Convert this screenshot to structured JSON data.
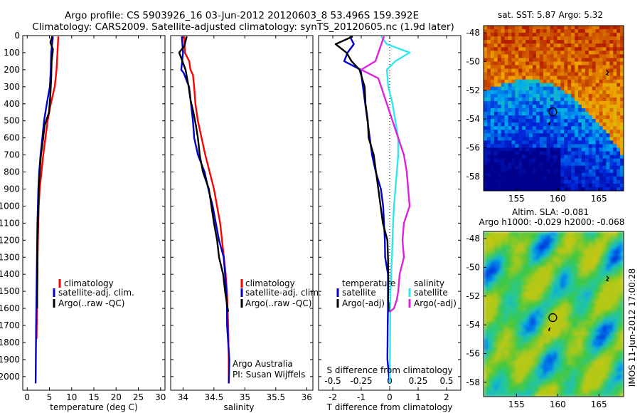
{
  "header": {
    "line1": "Argo profile: CS 5903926_16 03-Jun-2012 20120603_8 53.496S 159.392E",
    "line2": "Climatology: CARS2009. Satellite-adjusted climatology: synTS_20120605.nc (1.9d later)"
  },
  "colors": {
    "climatology": "#ff0000",
    "satellite": "#0000cc",
    "argo": "#000000",
    "sat_salinity": "#33e6ee",
    "argo_salinity_diff": "#dd22dd"
  },
  "chart_data": [
    {
      "type": "line",
      "id": "temperature",
      "xlabel": "temperature (deg C)",
      "xlim": [
        -1,
        31
      ],
      "ylim": [
        2080,
        0
      ],
      "xticks": [
        "0",
        "5",
        "10",
        "15",
        "20",
        "25",
        "30"
      ],
      "yticks": [
        "0",
        "100",
        "200",
        "300",
        "400",
        "500",
        "600",
        "700",
        "800",
        "900",
        "1000",
        "1100",
        "1200",
        "1300",
        "1400",
        "1500",
        "1600",
        "1700",
        "1800",
        "1900",
        "2000"
      ],
      "legend": [
        "climatology",
        "satellite-adj. clim.",
        "Argo(..raw -QC)"
      ],
      "series": [
        {
          "name": "climatology",
          "color": "#ff0000",
          "x": [
            7.0,
            6.9,
            6.8,
            6.6,
            6.2,
            5.3,
            4.6,
            4.1,
            3.6,
            3.2,
            2.8,
            2.6,
            2.5,
            2.4,
            2.35,
            2.3,
            2.25,
            2.2,
            2.15,
            2.1
          ],
          "y": [
            5,
            50,
            100,
            200,
            300,
            400,
            500,
            600,
            700,
            800,
            900,
            1000,
            1100,
            1200,
            1300,
            1400,
            1500,
            1600,
            1700,
            1780
          ]
        },
        {
          "name": "satellite-adj. clim.",
          "color": "#0000cc",
          "x": [
            5.8,
            5.6,
            5.4,
            5.3,
            5.1,
            4.4,
            3.8,
            3.4,
            3.0,
            2.7,
            2.5,
            2.4,
            2.3,
            2.25,
            2.2,
            2.15,
            2.1,
            2.05,
            2.0,
            1.95,
            1.9
          ],
          "y": [
            5,
            50,
            100,
            200,
            300,
            400,
            500,
            600,
            700,
            800,
            900,
            1000,
            1100,
            1200,
            1300,
            1400,
            1500,
            1600,
            1700,
            1900,
            2040
          ]
        },
        {
          "name": "Argo(..raw -QC)",
          "color": "#000000",
          "x": [
            5.6,
            5.2,
            5.8,
            5.5,
            5.4,
            5.2,
            4.9,
            3.9,
            3.6,
            3.1,
            2.8,
            2.6,
            2.5,
            2.4,
            2.35,
            2.3,
            2.3,
            2.25,
            2.25
          ],
          "y": [
            5,
            40,
            80,
            150,
            250,
            350,
            450,
            530,
            600,
            700,
            800,
            900,
            1000,
            1100,
            1200,
            1300,
            1400,
            1500,
            1600
          ]
        }
      ]
    },
    {
      "type": "line",
      "id": "salinity",
      "xlabel": "salinity",
      "xlim": [
        33.8,
        36.1
      ],
      "ylim": [
        2080,
        0
      ],
      "xticks": [
        "34",
        "34.5",
        "35",
        "35.5",
        "36"
      ],
      "legend": [
        "climatology",
        "satellite-adj. clim.",
        "Argo(..raw -QC)"
      ],
      "annotation": [
        "Argo Australia",
        "PI: Susan Wijffels"
      ],
      "series": [
        {
          "name": "climatology",
          "color": "#ff0000",
          "x": [
            34.02,
            34.03,
            34.1,
            34.12,
            34.16,
            34.18,
            34.2,
            34.24,
            34.3,
            34.36,
            34.43,
            34.5,
            34.55,
            34.6,
            34.63,
            34.66,
            34.69,
            34.71,
            34.72,
            34.73,
            34.74,
            34.74
          ],
          "y": [
            5,
            100,
            150,
            200,
            230,
            300,
            400,
            500,
            600,
            700,
            800,
            900,
            1000,
            1100,
            1200,
            1300,
            1400,
            1500,
            1600,
            1700,
            1900,
            2040
          ]
        },
        {
          "name": "satellite-adj. clim.",
          "color": "#0000cc",
          "x": [
            33.98,
            34.0,
            33.98,
            34.03,
            34.08,
            34.12,
            34.16,
            34.19,
            34.26,
            34.33,
            34.4,
            34.48,
            34.54,
            34.6,
            34.64,
            34.67,
            34.7,
            34.72,
            34.73,
            34.73,
            34.74
          ],
          "y": [
            5,
            100,
            200,
            220,
            300,
            400,
            500,
            600,
            700,
            800,
            900,
            1000,
            1100,
            1200,
            1300,
            1400,
            1500,
            1600,
            1700,
            1900,
            2040
          ]
        },
        {
          "name": "Argo(..raw -QC)",
          "color": "#000000",
          "x": [
            34.06,
            34.04,
            33.92,
            33.98,
            34.04,
            34.1,
            34.14,
            34.15,
            34.2,
            34.24,
            34.28,
            34.34,
            34.4,
            34.45,
            34.5,
            34.56,
            34.6,
            34.63,
            34.67,
            34.7,
            34.73,
            34.73
          ],
          "y": [
            5,
            60,
            100,
            150,
            200,
            300,
            380,
            450,
            530,
            600,
            700,
            800,
            900,
            1000,
            1100,
            1200,
            1300,
            1400,
            1500,
            1550,
            1600,
            1620
          ]
        }
      ]
    },
    {
      "type": "line",
      "id": "difference",
      "xlabel": "T difference from climatology",
      "xlabel_top": "S difference from climatology",
      "xlim": [
        -2.5,
        2.5
      ],
      "ylim": [
        2080,
        0
      ],
      "xticks": [
        "-2",
        "-1",
        "0",
        "1",
        "2"
      ],
      "xticks_top": [
        "-0.5",
        "-0.25",
        "0",
        "0.25",
        "0.5"
      ],
      "legend_left_title": "temperature",
      "legend_right_title": "salinity",
      "legend_left": [
        "satellite",
        "Argo(-adj)"
      ],
      "legend_right": [
        "satellite",
        "Argo(-adj)"
      ],
      "series": [
        {
          "name": "satellite",
          "color": "#0000cc",
          "x": [
            -1.4,
            -1.3,
            -1.5,
            -1.6,
            -1.0,
            -0.9,
            -0.9,
            -0.8,
            -0.7,
            -0.6,
            -0.45,
            -0.35,
            -0.25,
            -0.2,
            -0.15,
            -0.12,
            -0.1,
            -0.08,
            -0.06,
            -0.05,
            -0.04,
            0.0
          ],
          "y": [
            5,
            50,
            100,
            150,
            200,
            300,
            400,
            500,
            600,
            700,
            800,
            900,
            1000,
            1100,
            1200,
            1300,
            1400,
            1500,
            1600,
            1700,
            1900,
            2040
          ]
        },
        {
          "name": "Argo(-adj)",
          "color": "#000000",
          "x": [
            -1.3,
            -1.9,
            -1.5,
            -1.3,
            -1.1,
            -0.9,
            -0.85,
            -0.75,
            -0.7,
            -0.6,
            -0.5,
            -0.4,
            -0.3,
            -0.2,
            -0.12,
            -0.08,
            -0.05,
            -0.03,
            -0.02,
            0.0
          ],
          "y": [
            5,
            50,
            100,
            150,
            200,
            300,
            400,
            500,
            600,
            700,
            800,
            900,
            1000,
            1100,
            1200,
            1300,
            1400,
            1500,
            1550,
            1620
          ]
        },
        {
          "name": "satellite",
          "color": "#33e6ee",
          "x": [
            -0.3,
            -0.1,
            0.7,
            0.2,
            -0.1,
            -0.05,
            0.1,
            0.2,
            0.3,
            0.3,
            0.25,
            0.2,
            0.15,
            0.12,
            0.1,
            0.08,
            0.05,
            0.03,
            0.02,
            0.01,
            0.0
          ],
          "y": [
            5,
            50,
            100,
            150,
            200,
            300,
            400,
            500,
            600,
            700,
            800,
            900,
            1000,
            1100,
            1200,
            1300,
            1400,
            1500,
            1600,
            1900,
            2040
          ]
        },
        {
          "name": "Argo(-adj)",
          "color": "#dd22dd",
          "x": [
            -0.2,
            -0.5,
            -1.0,
            -0.4,
            -0.3,
            -0.1,
            0.1,
            0.3,
            0.5,
            0.6,
            0.65,
            0.7,
            0.5,
            0.45,
            0.5,
            0.35,
            0.3,
            0.25,
            0.15,
            0.0
          ],
          "y": [
            5,
            150,
            200,
            250,
            300,
            400,
            500,
            600,
            700,
            800,
            900,
            1000,
            1100,
            1200,
            1300,
            1400,
            1500,
            1550,
            1600,
            1620
          ]
        }
      ]
    },
    {
      "type": "heatmap",
      "id": "sst-map",
      "title": "sat. SST: 5.87 Argo: 5.32",
      "xlim": [
        151,
        168
      ],
      "ylim": [
        -59,
        -47.5
      ],
      "xticks": [
        "155",
        "160",
        "165"
      ],
      "yticks": [
        "-48",
        "-50",
        "-52",
        "-54",
        "-56",
        "-58"
      ],
      "marker": {
        "lon": 159.4,
        "lat": -53.5
      }
    },
    {
      "type": "heatmap",
      "id": "sla-map",
      "title": "Altim. SLA: -0.081",
      "subtitle": "Argo h1000: -0.029 h2000: -0.068",
      "xlim": [
        151,
        168
      ],
      "ylim": [
        -59,
        -47.5
      ],
      "xticks": [
        "155",
        "160",
        "165"
      ],
      "yticks": [
        "-48",
        "-50",
        "-52",
        "-54",
        "-56",
        "-58"
      ],
      "marker": {
        "lon": 159.4,
        "lat": -53.5
      }
    }
  ],
  "watermark": "IMOS 11-Jun-2012 17:00:28"
}
